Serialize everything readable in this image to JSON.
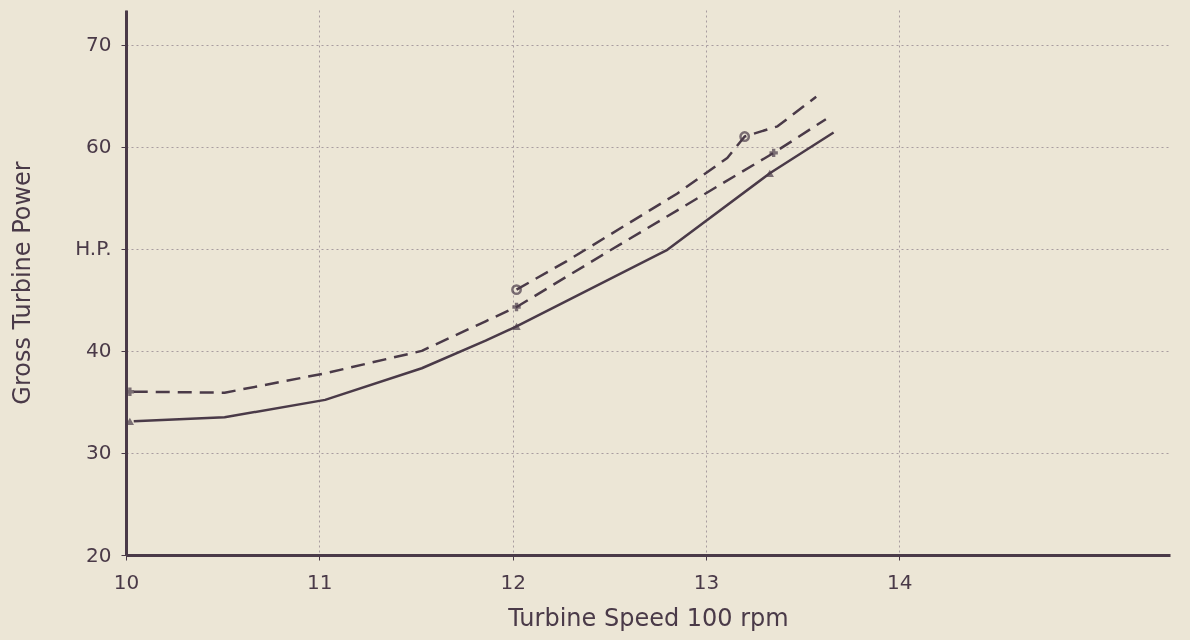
{
  "chart_data": {
    "type": "line",
    "xlabel": "Turbine Speed    100 rpm",
    "ylabel": "Gross Turbine Power",
    "xlim": [
      10,
      15.4
    ],
    "ylim": [
      20,
      73.4
    ],
    "xticks": [
      10,
      11,
      12,
      13,
      14
    ],
    "yticks": [
      20,
      30,
      40,
      {
        "value": 50,
        "label": "H.P."
      },
      60,
      70
    ],
    "grid": true,
    "series": [
      {
        "type": "line",
        "color": "#4a3a48",
        "line_style": "solid",
        "marker": "none",
        "x": [
          10.04,
          10.51,
          11.03,
          11.53,
          11.86,
          12.02,
          12.8,
          13.33,
          13.66
        ],
        "values": [
          33.1,
          33.5,
          35.2,
          38.3,
          41.0,
          42.4,
          49.9,
          57.4,
          61.4
        ]
      },
      {
        "type": "line",
        "color": "#4a3a48",
        "line_style": "dashed",
        "marker": "none",
        "x": [
          10.04,
          10.51,
          11.03,
          11.53,
          11.86,
          12.02,
          12.5,
          13.35,
          13.62
        ],
        "values": [
          36.0,
          35.9,
          37.8,
          40.0,
          42.9,
          44.3,
          49.8,
          59.4,
          62.7
        ]
      },
      {
        "type": "line",
        "color": "#4a3a48",
        "line_style": "dashed",
        "marker": "none",
        "x": [
          12.02,
          12.28,
          12.85,
          13.11,
          13.2,
          13.37,
          13.57
        ],
        "values": [
          46.0,
          48.8,
          55.4,
          58.9,
          61.0,
          62.0,
          64.9
        ]
      },
      {
        "type": "scatter",
        "color": "#4a3a48",
        "marker": "triangle",
        "x": [
          10.02,
          12.02,
          13.33
        ],
        "values": [
          33.1,
          42.4,
          57.4
        ]
      },
      {
        "type": "scatter",
        "color": "#4a3a48",
        "marker": "cross",
        "x": [
          10.02,
          12.02,
          13.35
        ],
        "values": [
          36.0,
          44.3,
          59.4
        ]
      },
      {
        "type": "scatter",
        "color": "#4a3a48",
        "marker": "circle",
        "x": [
          12.02,
          13.2
        ],
        "values": [
          46.0,
          61.0
        ]
      }
    ]
  }
}
